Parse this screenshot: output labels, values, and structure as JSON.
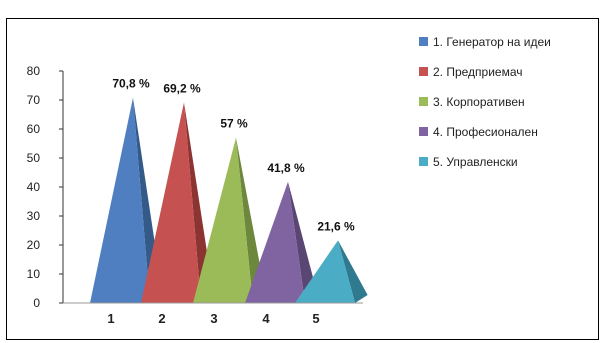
{
  "chart_data": {
    "type": "bar",
    "style": "3d-pyramid",
    "categories": [
      "1",
      "2",
      "3",
      "4",
      "5"
    ],
    "values": [
      70.8,
      69.2,
      57,
      41.8,
      21.6
    ],
    "data_labels": [
      "70,8 %",
      "69,2 %",
      "57 %",
      "41,8 %",
      "21,6 %"
    ],
    "ylim": [
      0,
      80
    ],
    "yticks": [
      0,
      10,
      20,
      30,
      40,
      50,
      60,
      70,
      80
    ],
    "grid": false,
    "legend": {
      "placement": "right",
      "entries": [
        "1. Генератор на идеи",
        "2. Предприемач",
        "3. Корпоративен",
        "4. Професионален",
        "5. Управленски"
      ]
    },
    "colors": {
      "front": [
        "#4f7fc0",
        "#c55250",
        "#9bbb59",
        "#8064a2",
        "#4bacc6"
      ],
      "side": [
        "#345a8a",
        "#8c3432",
        "#6d873d",
        "#5a4673",
        "#2f7a8e"
      ]
    }
  }
}
